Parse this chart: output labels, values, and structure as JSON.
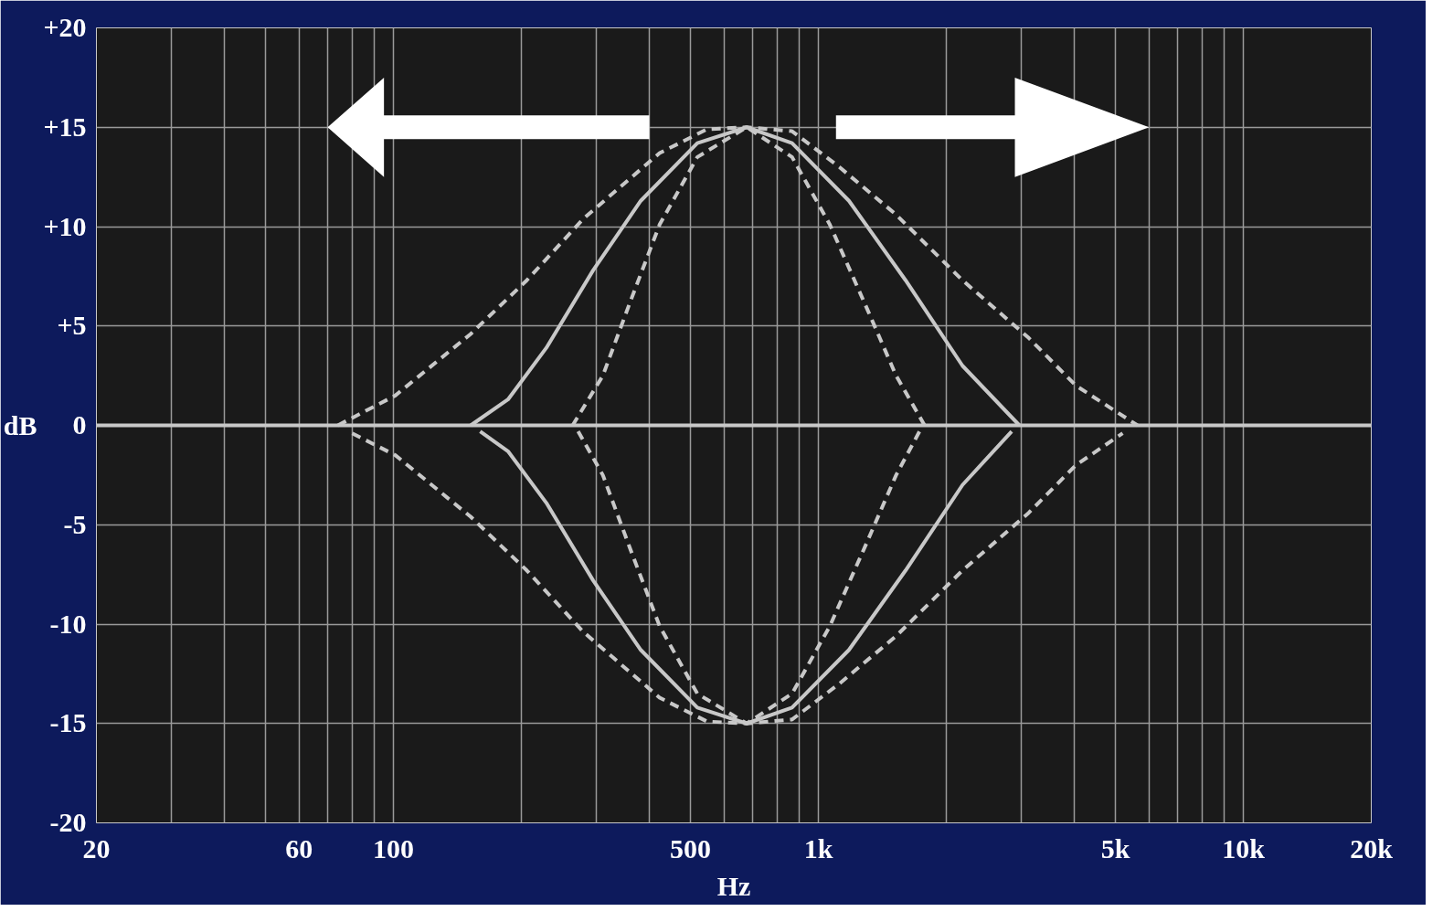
{
  "chart_data": {
    "type": "line",
    "xlabel": "Hz",
    "ylabel": "dB",
    "log": "x",
    "grid": true,
    "marker": "none",
    "xlim": [
      20,
      20000
    ],
    "ylim": [
      -20,
      20
    ],
    "xticks": [
      20,
      {
        "value": 30,
        "label": null
      },
      {
        "value": 40,
        "label": null
      },
      {
        "value": 50,
        "label": null
      },
      60,
      {
        "value": 70,
        "label": null
      },
      {
        "value": 80,
        "label": null
      },
      {
        "value": 90,
        "label": null
      },
      100,
      {
        "value": 200,
        "label": null
      },
      {
        "value": 300,
        "label": null
      },
      {
        "value": 400,
        "label": null
      },
      500,
      {
        "value": 600,
        "label": null
      },
      {
        "value": 700,
        "label": null
      },
      {
        "value": 800,
        "label": null
      },
      {
        "value": 900,
        "label": null
      },
      {
        "value": 1000,
        "label": "1k"
      },
      {
        "value": 2000,
        "label": null
      },
      {
        "value": 3000,
        "label": null
      },
      {
        "value": 4000,
        "label": null
      },
      {
        "value": 5000,
        "label": "5k"
      },
      {
        "value": 6000,
        "label": null
      },
      {
        "value": 7000,
        "label": null
      },
      {
        "value": 8000,
        "label": null
      },
      {
        "value": 9000,
        "label": null
      },
      {
        "value": 10000,
        "label": "10k"
      },
      {
        "value": 20000,
        "label": "20k"
      }
    ],
    "yticks": [
      {
        "value": 20,
        "label": "+20"
      },
      {
        "value": 15,
        "label": "+15"
      },
      {
        "value": 10,
        "label": "+10"
      },
      {
        "value": 5,
        "label": "+5"
      },
      0,
      -5,
      -10,
      -15,
      -20
    ],
    "ref_lines": [
      {
        "axis": "y",
        "value": 0,
        "color": "#c8c8c8"
      }
    ],
    "series": [
      {
        "color": "#c8c8c8",
        "line_style": "dashed",
        "x": [
          74,
          101,
          152,
          206,
          280,
          423,
          547,
          678,
          867,
          1120,
          1524,
          2183,
          3126,
          4036,
          5636
        ],
        "values": [
          0,
          1.5,
          4.6,
          7.3,
          10.4,
          13.7,
          14.9,
          15,
          14.8,
          13,
          10.6,
          7.3,
          4.4,
          2,
          0
        ]
      },
      {
        "color": "#c8c8c8",
        "line_style": "solid",
        "x": [
          152,
          186,
          229,
          295,
          382,
          519,
          678,
          867,
          1180,
          1604,
          2183,
          2972
        ],
        "values": [
          0,
          1.3,
          3.9,
          7.8,
          11.3,
          14.2,
          15,
          14.2,
          11.3,
          7.3,
          3,
          0
        ]
      },
      {
        "color": "#c8c8c8",
        "line_style": "dashed",
        "x": [
          264,
          311,
          362,
          423,
          519,
          678,
          867,
          1064,
          1306,
          1524,
          1778
        ],
        "values": [
          0,
          2.5,
          6.3,
          10.1,
          13.5,
          15,
          13.5,
          10.1,
          5.8,
          2.5,
          0
        ]
      },
      {
        "color": "#c8c8c8",
        "line_style": "dashed",
        "x": [
          80,
          101,
          152,
          206,
          280,
          423,
          547,
          678,
          867,
          1120,
          1524,
          2183,
          3126,
          4036,
          5200
        ],
        "values": [
          -0.4,
          -1.5,
          -4.6,
          -7.3,
          -10.4,
          -13.7,
          -14.9,
          -15,
          -14.8,
          -13,
          -10.6,
          -7.3,
          -4.4,
          -2,
          -0.4
        ]
      },
      {
        "color": "#c8c8c8",
        "line_style": "solid",
        "x": [
          160,
          186,
          229,
          295,
          382,
          519,
          678,
          867,
          1180,
          1604,
          2183,
          2850
        ],
        "values": [
          -0.3,
          -1.3,
          -3.9,
          -7.8,
          -11.3,
          -14.2,
          -15,
          -14.2,
          -11.3,
          -7.3,
          -3,
          -0.3
        ]
      },
      {
        "color": "#c8c8c8",
        "line_style": "dashed",
        "x": [
          272,
          311,
          362,
          423,
          519,
          678,
          867,
          1064,
          1306,
          1524,
          1730
        ],
        "values": [
          -0.3,
          -2.5,
          -6.3,
          -10.1,
          -13.5,
          -15,
          -13.5,
          -10.1,
          -5.8,
          -2.5,
          -0.3
        ]
      }
    ]
  }
}
